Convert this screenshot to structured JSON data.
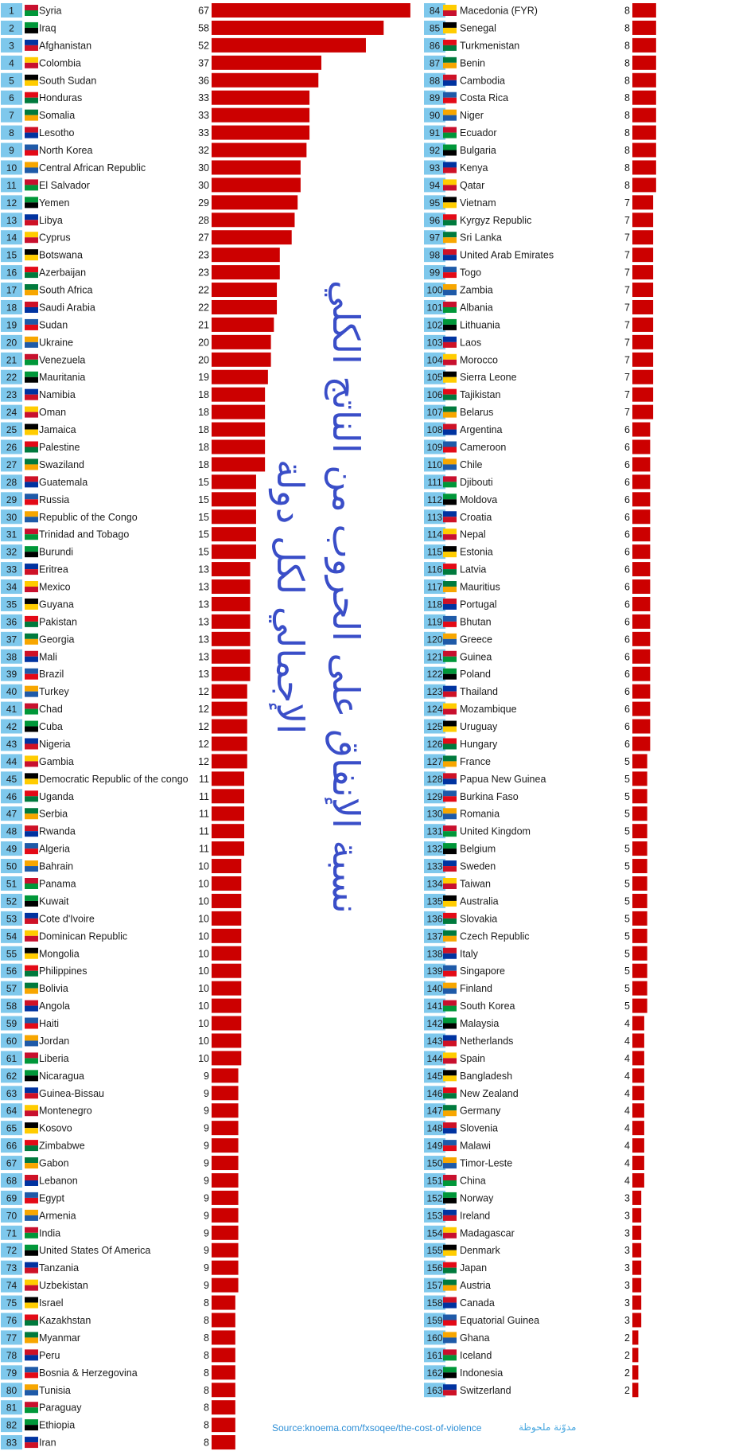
{
  "title": "نسبة الإنفاق على الحروب من الناتج الكلي الإجمالي لكل دولة",
  "source": "Source:knoema.com/fxsoqee/the-cost-of-violence",
  "watermark": "مدوّنة ملحوظة",
  "colors": {
    "bar": "#cc0000",
    "rank_bg": "#7ec8ec",
    "text": "#1a1a1a",
    "title": "#3a4ec8"
  },
  "chart_data": {
    "type": "bar",
    "orientation": "horizontal",
    "rows": [
      {
        "rank": 1,
        "country": "Syria",
        "value": 67
      },
      {
        "rank": 2,
        "country": "Iraq",
        "value": 58
      },
      {
        "rank": 3,
        "country": "Afghanistan",
        "value": 52
      },
      {
        "rank": 4,
        "country": "Colombia",
        "value": 37
      },
      {
        "rank": 5,
        "country": "South Sudan",
        "value": 36
      },
      {
        "rank": 6,
        "country": "Honduras",
        "value": 33
      },
      {
        "rank": 7,
        "country": "Somalia",
        "value": 33
      },
      {
        "rank": 8,
        "country": "Lesotho",
        "value": 33
      },
      {
        "rank": 9,
        "country": "North Korea",
        "value": 32
      },
      {
        "rank": 10,
        "country": "Central African Republic",
        "value": 30
      },
      {
        "rank": 11,
        "country": "El Salvador",
        "value": 30
      },
      {
        "rank": 12,
        "country": "Yemen",
        "value": 29
      },
      {
        "rank": 13,
        "country": "Libya",
        "value": 28
      },
      {
        "rank": 14,
        "country": "Cyprus",
        "value": 27
      },
      {
        "rank": 15,
        "country": "Botswana",
        "value": 23
      },
      {
        "rank": 16,
        "country": "Azerbaijan",
        "value": 23
      },
      {
        "rank": 17,
        "country": "South Africa",
        "value": 22
      },
      {
        "rank": 18,
        "country": "Saudi Arabia",
        "value": 22
      },
      {
        "rank": 19,
        "country": "Sudan",
        "value": 21
      },
      {
        "rank": 20,
        "country": "Ukraine",
        "value": 20
      },
      {
        "rank": 21,
        "country": "Venezuela",
        "value": 20
      },
      {
        "rank": 22,
        "country": "Mauritania",
        "value": 19
      },
      {
        "rank": 23,
        "country": "Namibia",
        "value": 18
      },
      {
        "rank": 24,
        "country": "Oman",
        "value": 18
      },
      {
        "rank": 25,
        "country": "Jamaica",
        "value": 18
      },
      {
        "rank": 26,
        "country": "Palestine",
        "value": 18
      },
      {
        "rank": 27,
        "country": "Swaziland",
        "value": 18
      },
      {
        "rank": 28,
        "country": "Guatemala",
        "value": 15
      },
      {
        "rank": 29,
        "country": "Russia",
        "value": 15
      },
      {
        "rank": 30,
        "country": "Republic of the Congo",
        "value": 15
      },
      {
        "rank": 31,
        "country": "Trinidad and Tobago",
        "value": 15
      },
      {
        "rank": 32,
        "country": "Burundi",
        "value": 15
      },
      {
        "rank": 33,
        "country": "Eritrea",
        "value": 13
      },
      {
        "rank": 34,
        "country": "Mexico",
        "value": 13
      },
      {
        "rank": 35,
        "country": "Guyana",
        "value": 13
      },
      {
        "rank": 36,
        "country": "Pakistan",
        "value": 13
      },
      {
        "rank": 37,
        "country": "Georgia",
        "value": 13
      },
      {
        "rank": 38,
        "country": "Mali",
        "value": 13
      },
      {
        "rank": 39,
        "country": "Brazil",
        "value": 13
      },
      {
        "rank": 40,
        "country": "Turkey",
        "value": 12
      },
      {
        "rank": 41,
        "country": "Chad",
        "value": 12
      },
      {
        "rank": 42,
        "country": "Cuba",
        "value": 12
      },
      {
        "rank": 43,
        "country": "Nigeria",
        "value": 12
      },
      {
        "rank": 44,
        "country": "Gambia",
        "value": 12
      },
      {
        "rank": 45,
        "country": "Democratic Republic of the congo",
        "value": 11
      },
      {
        "rank": 46,
        "country": "Uganda",
        "value": 11
      },
      {
        "rank": 47,
        "country": "Serbia",
        "value": 11
      },
      {
        "rank": 48,
        "country": "Rwanda",
        "value": 11
      },
      {
        "rank": 49,
        "country": "Algeria",
        "value": 11
      },
      {
        "rank": 50,
        "country": "Bahrain",
        "value": 10
      },
      {
        "rank": 51,
        "country": "Panama",
        "value": 10
      },
      {
        "rank": 52,
        "country": "Kuwait",
        "value": 10
      },
      {
        "rank": 53,
        "country": "Cote d'Ivoire",
        "value": 10
      },
      {
        "rank": 54,
        "country": "Dominican Republic",
        "value": 10
      },
      {
        "rank": 55,
        "country": "Mongolia",
        "value": 10
      },
      {
        "rank": 56,
        "country": "Philippines",
        "value": 10
      },
      {
        "rank": 57,
        "country": "Bolivia",
        "value": 10
      },
      {
        "rank": 58,
        "country": "Angola",
        "value": 10
      },
      {
        "rank": 59,
        "country": "Haiti",
        "value": 10
      },
      {
        "rank": 60,
        "country": "Jordan",
        "value": 10
      },
      {
        "rank": 61,
        "country": "Liberia",
        "value": 10
      },
      {
        "rank": 62,
        "country": "Nicaragua",
        "value": 9
      },
      {
        "rank": 63,
        "country": "Guinea-Bissau",
        "value": 9
      },
      {
        "rank": 64,
        "country": "Montenegro",
        "value": 9
      },
      {
        "rank": 65,
        "country": "Kosovo",
        "value": 9
      },
      {
        "rank": 66,
        "country": "Zimbabwe",
        "value": 9
      },
      {
        "rank": 67,
        "country": "Gabon",
        "value": 9
      },
      {
        "rank": 68,
        "country": "Lebanon",
        "value": 9
      },
      {
        "rank": 69,
        "country": "Egypt",
        "value": 9
      },
      {
        "rank": 70,
        "country": "Armenia",
        "value": 9
      },
      {
        "rank": 71,
        "country": "India",
        "value": 9
      },
      {
        "rank": 72,
        "country": "United States Of America",
        "value": 9
      },
      {
        "rank": 73,
        "country": "Tanzania",
        "value": 9
      },
      {
        "rank": 74,
        "country": "Uzbekistan",
        "value": 9
      },
      {
        "rank": 75,
        "country": "Israel",
        "value": 8
      },
      {
        "rank": 76,
        "country": "Kazakhstan",
        "value": 8
      },
      {
        "rank": 77,
        "country": "Myanmar",
        "value": 8
      },
      {
        "rank": 78,
        "country": "Peru",
        "value": 8
      },
      {
        "rank": 79,
        "country": "Bosnia & Herzegovina",
        "value": 8
      },
      {
        "rank": 80,
        "country": "Tunisia",
        "value": 8
      },
      {
        "rank": 81,
        "country": "Paraguay",
        "value": 8
      },
      {
        "rank": 82,
        "country": "Ethiopia",
        "value": 8
      },
      {
        "rank": 83,
        "country": "Iran",
        "value": 8
      },
      {
        "rank": 84,
        "country": "Macedonia (FYR)",
        "value": 8
      },
      {
        "rank": 85,
        "country": "Senegal",
        "value": 8
      },
      {
        "rank": 86,
        "country": "Turkmenistan",
        "value": 8
      },
      {
        "rank": 87,
        "country": "Benin",
        "value": 8
      },
      {
        "rank": 88,
        "country": "Cambodia",
        "value": 8
      },
      {
        "rank": 89,
        "country": "Costa Rica",
        "value": 8
      },
      {
        "rank": 90,
        "country": "Niger",
        "value": 8
      },
      {
        "rank": 91,
        "country": "Ecuador",
        "value": 8
      },
      {
        "rank": 92,
        "country": "Bulgaria",
        "value": 8
      },
      {
        "rank": 93,
        "country": "Kenya",
        "value": 8
      },
      {
        "rank": 94,
        "country": "Qatar",
        "value": 8
      },
      {
        "rank": 95,
        "country": "Vietnam",
        "value": 7
      },
      {
        "rank": 96,
        "country": "Kyrgyz Republic",
        "value": 7
      },
      {
        "rank": 97,
        "country": "Sri Lanka",
        "value": 7
      },
      {
        "rank": 98,
        "country": "United Arab Emirates",
        "value": 7
      },
      {
        "rank": 99,
        "country": "Togo",
        "value": 7
      },
      {
        "rank": 100,
        "country": "Zambia",
        "value": 7
      },
      {
        "rank": 101,
        "country": "Albania",
        "value": 7
      },
      {
        "rank": 102,
        "country": "Lithuania",
        "value": 7
      },
      {
        "rank": 103,
        "country": "Laos",
        "value": 7
      },
      {
        "rank": 104,
        "country": "Morocco",
        "value": 7
      },
      {
        "rank": 105,
        "country": "Sierra Leone",
        "value": 7
      },
      {
        "rank": 106,
        "country": "Tajikistan",
        "value": 7
      },
      {
        "rank": 107,
        "country": "Belarus",
        "value": 7
      },
      {
        "rank": 108,
        "country": "Argentina",
        "value": 6
      },
      {
        "rank": 109,
        "country": "Cameroon",
        "value": 6
      },
      {
        "rank": 110,
        "country": "Chile",
        "value": 6
      },
      {
        "rank": 111,
        "country": "Djibouti",
        "value": 6
      },
      {
        "rank": 112,
        "country": "Moldova",
        "value": 6
      },
      {
        "rank": 113,
        "country": "Croatia",
        "value": 6
      },
      {
        "rank": 114,
        "country": "Nepal",
        "value": 6
      },
      {
        "rank": 115,
        "country": "Estonia",
        "value": 6
      },
      {
        "rank": 116,
        "country": "Latvia",
        "value": 6
      },
      {
        "rank": 117,
        "country": "Mauritius",
        "value": 6
      },
      {
        "rank": 118,
        "country": "Portugal",
        "value": 6
      },
      {
        "rank": 119,
        "country": "Bhutan",
        "value": 6
      },
      {
        "rank": 120,
        "country": "Greece",
        "value": 6
      },
      {
        "rank": 121,
        "country": "Guinea",
        "value": 6
      },
      {
        "rank": 122,
        "country": "Poland",
        "value": 6
      },
      {
        "rank": 123,
        "country": "Thailand",
        "value": 6
      },
      {
        "rank": 124,
        "country": "Mozambique",
        "value": 6
      },
      {
        "rank": 125,
        "country": "Uruguay",
        "value": 6
      },
      {
        "rank": 126,
        "country": "Hungary",
        "value": 6
      },
      {
        "rank": 127,
        "country": "France",
        "value": 5
      },
      {
        "rank": 128,
        "country": "Papua New Guinea",
        "value": 5
      },
      {
        "rank": 129,
        "country": "Burkina Faso",
        "value": 5
      },
      {
        "rank": 130,
        "country": "Romania",
        "value": 5
      },
      {
        "rank": 131,
        "country": "United Kingdom",
        "value": 5
      },
      {
        "rank": 132,
        "country": "Belgium",
        "value": 5
      },
      {
        "rank": 133,
        "country": "Sweden",
        "value": 5
      },
      {
        "rank": 134,
        "country": "Taiwan",
        "value": 5
      },
      {
        "rank": 135,
        "country": "Australia",
        "value": 5
      },
      {
        "rank": 136,
        "country": "Slovakia",
        "value": 5
      },
      {
        "rank": 137,
        "country": "Czech Republic",
        "value": 5
      },
      {
        "rank": 138,
        "country": "Italy",
        "value": 5
      },
      {
        "rank": 139,
        "country": "Singapore",
        "value": 5
      },
      {
        "rank": 140,
        "country": "Finland",
        "value": 5
      },
      {
        "rank": 141,
        "country": "South Korea",
        "value": 5
      },
      {
        "rank": 142,
        "country": "Malaysia",
        "value": 4
      },
      {
        "rank": 143,
        "country": "Netherlands",
        "value": 4
      },
      {
        "rank": 144,
        "country": "Spain",
        "value": 4
      },
      {
        "rank": 145,
        "country": "Bangladesh",
        "value": 4
      },
      {
        "rank": 146,
        "country": "New Zealand",
        "value": 4
      },
      {
        "rank": 147,
        "country": "Germany",
        "value": 4
      },
      {
        "rank": 148,
        "country": "Slovenia",
        "value": 4
      },
      {
        "rank": 149,
        "country": "Malawi",
        "value": 4
      },
      {
        "rank": 150,
        "country": "Timor-Leste",
        "value": 4
      },
      {
        "rank": 151,
        "country": "China",
        "value": 4
      },
      {
        "rank": 152,
        "country": "Norway",
        "value": 3
      },
      {
        "rank": 153,
        "country": "Ireland",
        "value": 3
      },
      {
        "rank": 154,
        "country": "Madagascar",
        "value": 3
      },
      {
        "rank": 155,
        "country": "Denmark",
        "value": 3
      },
      {
        "rank": 156,
        "country": "Japan",
        "value": 3
      },
      {
        "rank": 157,
        "country": "Austria",
        "value": 3
      },
      {
        "rank": 158,
        "country": "Canada",
        "value": 3
      },
      {
        "rank": 159,
        "country": "Equatorial Guinea",
        "value": 3
      },
      {
        "rank": 160,
        "country": "Ghana",
        "value": 2
      },
      {
        "rank": 161,
        "country": "Iceland",
        "value": 2
      },
      {
        "rank": 162,
        "country": "Indonesia",
        "value": 2
      },
      {
        "rank": 163,
        "country": "Switzerland",
        "value": 2
      }
    ]
  }
}
